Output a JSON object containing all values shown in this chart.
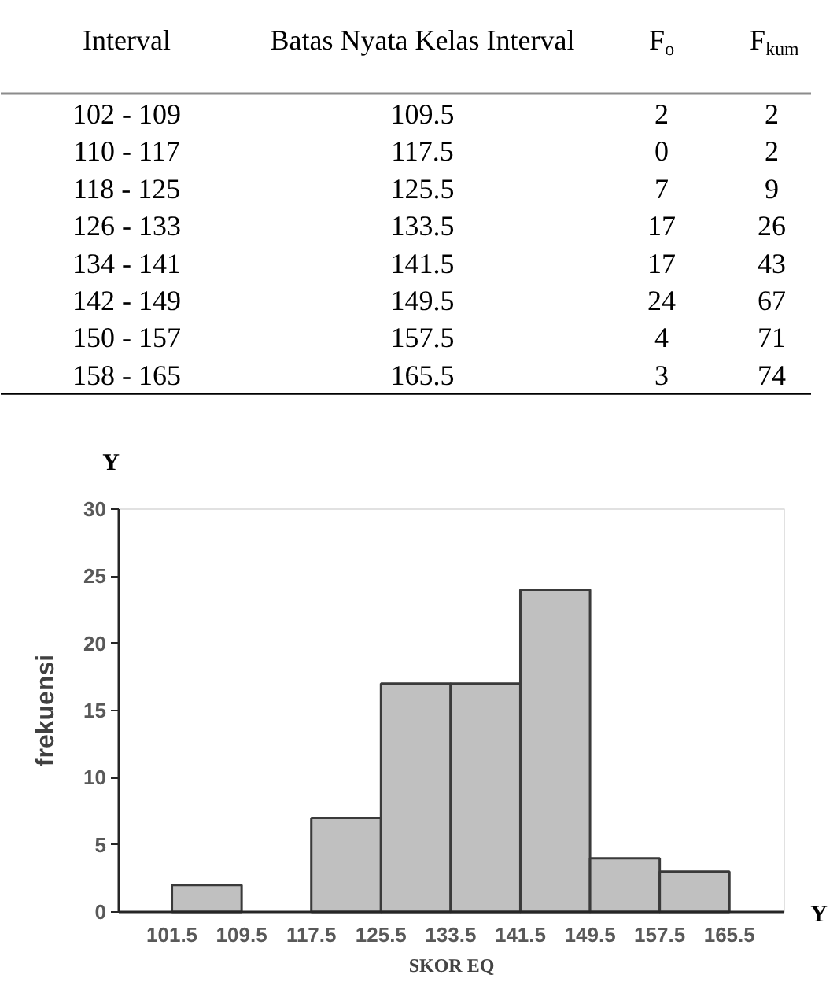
{
  "chart_data": [
    {
      "type": "other",
      "ylabel": "Interval",
      "categories": [
        "102 - 109",
        "110 - 117",
        "118 - 125",
        "126 - 133",
        "134 - 141",
        "142 - 149",
        "150 - 157",
        "158 - 165"
      ],
      "series": [
        {
          "name": "Batas Nyata Kelas Interval",
          "values": [
            109.5,
            117.5,
            125.5,
            133.5,
            141.5,
            149.5,
            157.5,
            165.5
          ]
        },
        {
          "name": "F$_{o}$",
          "values": [
            2,
            0,
            7,
            17,
            17,
            24,
            4,
            3
          ]
        },
        {
          "name": "F$_{kum}$",
          "values": [
            2,
            2,
            9,
            26,
            43,
            67,
            71,
            74
          ]
        }
      ],
      "data_labels": true
    },
    {
      "type": "histogram",
      "xlabel": "SKOR EQ",
      "ylabel": "frekuensi",
      "annotations": [
        "Y",
        "Y"
      ],
      "bins": [
        101.5,
        109.5,
        117.5,
        125.5,
        133.5,
        141.5,
        149.5,
        157.5,
        165.5
      ],
      "values": [
        2,
        0,
        7,
        17,
        17,
        24,
        4,
        3
      ],
      "color": "#c0c0c0",
      "xlim": [
        95.4,
        171.8
      ],
      "ylim": [
        0,
        30
      ],
      "xticks": [
        101.5,
        109.5,
        117.5,
        125.5,
        133.5,
        141.5,
        149.5,
        157.5,
        165.5
      ],
      "yticks": [
        0,
        5,
        10,
        15,
        20,
        25,
        30
      ],
      "grid": false
    }
  ]
}
